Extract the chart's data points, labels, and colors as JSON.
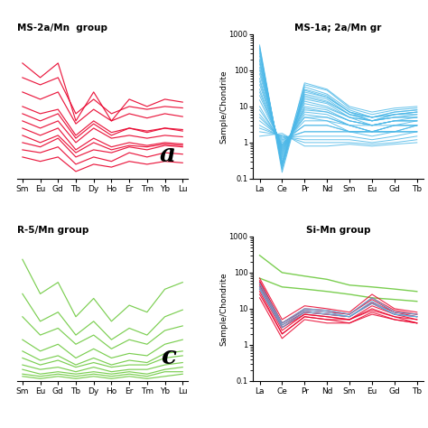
{
  "title_a": "MS-2a/Mn  group",
  "title_b": "MS-1a; 2a/Mn gr",
  "title_c": "R-5/Mn group",
  "title_d": "Si-Mn group",
  "label_a": "a",
  "label_c": "c",
  "ylabel_log": "Sample/Chondrite",
  "color_red": "#e8002a",
  "color_blue": "#4cb8e8",
  "color_green": "#6dc93e",
  "background": "#ffffff",
  "xticks_log": [
    "La",
    "Ce",
    "Pr",
    "Nd",
    "Sm",
    "Eu",
    "Gd",
    "Tb"
  ],
  "xticks_lin": [
    "Sm",
    "Eu",
    "Gd",
    "Tb",
    "Dy",
    "Ho",
    "Er",
    "Tm",
    "Yb",
    "Lu"
  ],
  "blue_lines_b": [
    [
      500,
      0.18,
      35,
      22,
      8,
      5,
      7,
      8
    ],
    [
      450,
      0.15,
      30,
      20,
      7,
      5,
      6,
      7
    ],
    [
      400,
      0.2,
      28,
      18,
      7,
      4,
      6,
      7
    ],
    [
      350,
      0.22,
      45,
      30,
      10,
      7,
      9,
      10
    ],
    [
      300,
      0.25,
      40,
      28,
      9,
      6,
      8,
      9
    ],
    [
      250,
      0.25,
      25,
      18,
      7,
      5,
      7,
      8
    ],
    [
      200,
      0.3,
      22,
      16,
      6,
      5,
      6,
      7
    ],
    [
      180,
      0.28,
      20,
      14,
      6,
      4,
      6,
      6
    ],
    [
      150,
      0.35,
      18,
      13,
      6,
      4,
      5,
      6
    ],
    [
      120,
      0.4,
      16,
      12,
      5,
      4,
      5,
      5
    ],
    [
      100,
      0.45,
      14,
      10,
      5,
      4,
      5,
      5
    ],
    [
      80,
      0.5,
      12,
      9,
      5,
      3,
      4,
      5
    ],
    [
      60,
      0.55,
      10,
      8,
      4,
      3,
      4,
      4
    ],
    [
      50,
      0.6,
      9,
      7,
      4,
      3,
      4,
      4
    ],
    [
      40,
      0.65,
      8,
      7,
      4,
      3,
      4,
      4
    ],
    [
      30,
      0.7,
      7,
      6,
      3,
      3,
      3,
      4
    ],
    [
      25,
      0.75,
      6,
      5,
      3,
      2,
      3,
      3
    ],
    [
      20,
      0.8,
      5,
      5,
      3,
      2,
      3,
      3
    ],
    [
      15,
      0.85,
      5,
      4,
      3,
      2,
      3,
      3
    ],
    [
      10,
      0.9,
      4,
      4,
      2,
      2,
      2,
      3
    ],
    [
      8,
      1.0,
      3,
      3,
      2,
      2,
      2,
      3
    ],
    [
      6,
      1.1,
      3,
      3,
      2,
      2,
      2,
      2
    ],
    [
      5,
      1.2,
      2,
      2,
      2,
      2,
      2,
      2
    ],
    [
      4,
      1.3,
      2,
      2,
      2,
      1.5,
      2,
      2
    ],
    [
      3,
      1.4,
      1.5,
      1.5,
      1.5,
      1.2,
      1.5,
      2
    ],
    [
      2.5,
      1.5,
      1.2,
      1.2,
      1.2,
      1.0,
      1.2,
      1.5
    ],
    [
      2,
      1.6,
      1.0,
      1.0,
      1.0,
      0.9,
      1.0,
      1.2
    ],
    [
      1.5,
      1.8,
      0.8,
      0.8,
      0.9,
      0.8,
      0.9,
      1.0
    ]
  ],
  "red_lines_a_data": [
    [
      5.5,
      5.2,
      5.8,
      4.5,
      5.0,
      4.8,
      5.2,
      5.0,
      5.3,
      5.2
    ],
    [
      6.5,
      6.0,
      6.5,
      5.0,
      5.8,
      5.2,
      5.5,
      5.3,
      5.5,
      5.4
    ],
    [
      8.0,
      7.5,
      7.8,
      6.0,
      7.0,
      6.2,
      6.5,
      6.3,
      6.5,
      6.4
    ],
    [
      9.0,
      8.5,
      9.0,
      6.8,
      7.8,
      7.0,
      7.5,
      7.2,
      7.5,
      7.3
    ],
    [
      10.0,
      9.5,
      10.0,
      7.5,
      8.5,
      7.5,
      8.0,
      7.8,
      8.0,
      7.9
    ],
    [
      11.0,
      10.0,
      11.0,
      7.0,
      9.0,
      7.0,
      8.5,
      8.0,
      8.5,
      8.3
    ],
    [
      5.0,
      4.8,
      5.2,
      4.0,
      4.5,
      4.2,
      4.8,
      4.5,
      4.8,
      4.7
    ],
    [
      7.0,
      6.5,
      7.0,
      5.5,
      6.5,
      5.8,
      6.0,
      5.8,
      6.0,
      5.9
    ],
    [
      4.5,
      4.2,
      4.5,
      3.5,
      4.0,
      3.8,
      4.2,
      4.0,
      4.2,
      4.1
    ],
    [
      7.5,
      7.0,
      7.5,
      5.8,
      6.8,
      6.0,
      6.5,
      6.2,
      6.5,
      6.3
    ],
    [
      6.0,
      5.5,
      6.0,
      4.8,
      5.5,
      5.0,
      5.3,
      5.2,
      5.4,
      5.3
    ]
  ],
  "green_lines_c_data": [
    [
      55,
      40,
      45,
      30,
      38,
      28,
      35,
      32,
      42,
      45
    ],
    [
      40,
      28,
      32,
      22,
      28,
      20,
      25,
      22,
      30,
      33
    ],
    [
      30,
      22,
      25,
      18,
      22,
      16,
      20,
      18,
      24,
      26
    ],
    [
      20,
      15,
      18,
      12,
      16,
      12,
      14,
      13,
      18,
      20
    ],
    [
      15,
      11,
      13,
      9,
      12,
      9,
      11,
      10,
      14,
      15
    ],
    [
      12,
      9,
      11,
      8,
      10,
      8,
      9,
      9,
      12,
      13
    ],
    [
      9,
      7,
      8,
      6,
      8,
      6,
      7,
      7,
      9,
      10
    ],
    [
      7,
      5,
      6,
      5,
      6,
      5,
      6,
      5,
      7,
      8
    ],
    [
      5,
      4,
      5,
      4,
      5,
      4,
      5,
      4,
      6,
      6
    ],
    [
      4,
      3,
      4,
      3,
      4,
      3,
      4,
      3,
      4,
      5
    ]
  ],
  "red_lines_d": [
    [
      70,
      5,
      12,
      10,
      8,
      25,
      10,
      8
    ],
    [
      60,
      4,
      10,
      9,
      7,
      20,
      9,
      7
    ],
    [
      55,
      4,
      9,
      8,
      7,
      18,
      8,
      7
    ],
    [
      50,
      3.5,
      8,
      7,
      6,
      15,
      8,
      6
    ],
    [
      45,
      3,
      8,
      7,
      6,
      14,
      7,
      6
    ],
    [
      40,
      3,
      7,
      6,
      5,
      12,
      7,
      5
    ],
    [
      35,
      2.5,
      7,
      6,
      5,
      10,
      6,
      5
    ],
    [
      30,
      2,
      6,
      5,
      5,
      9,
      6,
      4
    ],
    [
      25,
      2,
      6,
      5,
      4,
      8,
      5,
      4
    ],
    [
      20,
      1.5,
      5,
      4,
      4,
      7,
      5,
      4
    ]
  ],
  "blue_lines_d": [
    [
      50,
      4,
      10,
      9,
      7,
      20,
      8,
      7
    ],
    [
      40,
      3.5,
      9,
      8,
      6,
      16,
      7,
      6
    ],
    [
      35,
      3,
      8,
      7,
      6,
      14,
      7,
      6
    ]
  ],
  "green_lines_d": [
    [
      300,
      100,
      80,
      65,
      45,
      40,
      35,
      30
    ],
    [
      70,
      40,
      35,
      30,
      25,
      20,
      18,
      16
    ]
  ],
  "ylim_log": [
    0.1,
    1000
  ],
  "ylim_lin_a": [
    3,
    13
  ],
  "ylim_lin_c": [
    2,
    65
  ]
}
